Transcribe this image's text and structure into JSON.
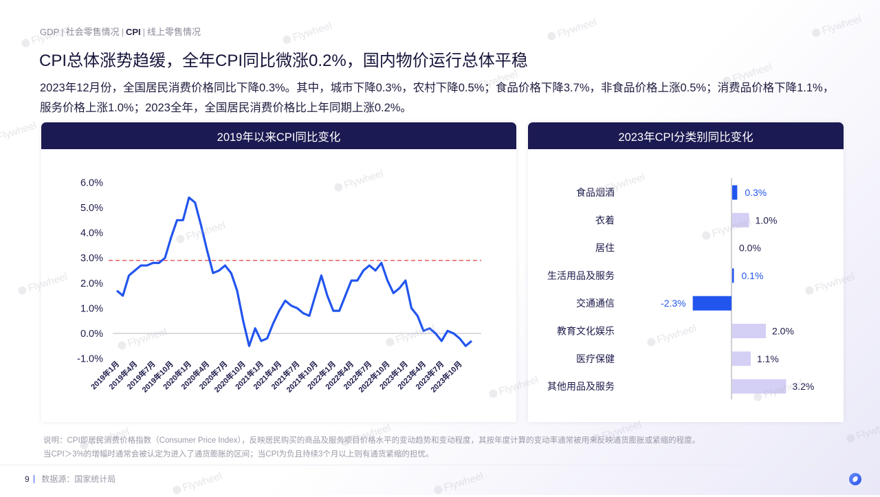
{
  "breadcrumb": {
    "items": [
      "GDP",
      "社会零售情况",
      "CPI",
      "线上零售情况"
    ],
    "active_index": 2
  },
  "title": "CPI总体涨势趋缓，全年CPI同比微涨0.2%，国内物价运行总体平稳",
  "summary": "2023年12月份，全国居民消费价格同比下降0.3%。其中，城市下降0.3%，农村下降0.5%；食品价格下降3.7%，非食品价格上涨0.5%；消费品价格下降1.1%，服务价格上涨1.0%；2023全年，全国居民消费价格比上年同期上涨0.2%。",
  "panels": {
    "left_title": "2019年以来CPI同比变化",
    "right_title": "2023年CPI分类别同比变化"
  },
  "note": {
    "line1": "说明：CPI即居民消费价格指数（Consumer Price Index），反映居民购买的商品及服务项目价格水平的变动趋势和变动程度，其按年度计算的变动率通常被用来反映通货膨胀或紧缩的程度。",
    "line2": "当CPI＞3%的增幅时通常会被认定为进入了通货膨胀的区间；当CPI为负且持续3个月以上则有通货紧缩的担忧。"
  },
  "footer": {
    "page": "9",
    "source": "数据源：国家统计局"
  },
  "watermark": "Flywheel",
  "colors": {
    "header_bg": "#1c1a52",
    "line": "#2255ee",
    "threshold": "#e85a5a",
    "bar_highlight": "#2255ee",
    "bar_muted": "#d4cff5",
    "text_dark": "#1b1a4a"
  },
  "chart_data": [
    {
      "type": "line",
      "title": "2019年以来CPI同比变化",
      "xlabel": "",
      "ylabel": "",
      "ylim": [
        -1.0,
        6.0
      ],
      "yticks": [
        "6.0%",
        "5.0%",
        "4.0%",
        "3.0%",
        "2.0%",
        "1.0%",
        "0.0%",
        "-1.0%"
      ],
      "xtick_labels": [
        "2019年1月",
        "2019年4月",
        "2019年7月",
        "2019年10月",
        "2020年1月",
        "2020年4月",
        "2020年7月",
        "2020年10月",
        "2021年1月",
        "2021年4月",
        "2021年7月",
        "2021年10月",
        "2022年1月",
        "2022年4月",
        "2022年7月",
        "2022年10月",
        "2023年1月",
        "2023年4月",
        "2023年7月",
        "2023年10月"
      ],
      "threshold": {
        "value": 2.9,
        "style": "dashed",
        "color": "#e85a5a"
      },
      "grid": false,
      "series": [
        {
          "name": "CPI同比",
          "x_start": "2019年1月",
          "x_end": "2023年12月",
          "values": [
            1.7,
            1.5,
            2.3,
            2.5,
            2.7,
            2.7,
            2.8,
            2.8,
            3.0,
            3.8,
            4.5,
            4.5,
            5.4,
            5.2,
            4.3,
            3.3,
            2.4,
            2.5,
            2.7,
            2.4,
            1.7,
            0.5,
            -0.5,
            0.2,
            -0.3,
            -0.2,
            0.4,
            0.9,
            1.3,
            1.1,
            1.0,
            0.8,
            0.7,
            1.5,
            2.3,
            1.5,
            0.9,
            0.9,
            1.5,
            2.1,
            2.1,
            2.5,
            2.7,
            2.5,
            2.8,
            2.1,
            1.6,
            1.8,
            2.1,
            1.0,
            0.7,
            0.1,
            0.2,
            0.0,
            -0.3,
            0.1,
            0.0,
            -0.2,
            -0.5,
            -0.3
          ]
        }
      ]
    },
    {
      "type": "bar",
      "orientation": "horizontal",
      "title": "2023年CPI分类别同比变化",
      "categories": [
        "食品烟酒",
        "衣着",
        "居住",
        "生活用品及服务",
        "交通通信",
        "教育文化娱乐",
        "医疗保健",
        "其他用品及服务"
      ],
      "values": [
        0.3,
        1.0,
        0.0,
        0.1,
        -2.3,
        2.0,
        1.1,
        3.2
      ],
      "labels": [
        "0.3%",
        "1.0%",
        "0.0%",
        "0.1%",
        "-2.3%",
        "2.0%",
        "1.1%",
        "3.2%"
      ],
      "highlight": [
        true,
        false,
        false,
        true,
        true,
        false,
        false,
        false
      ]
    }
  ]
}
